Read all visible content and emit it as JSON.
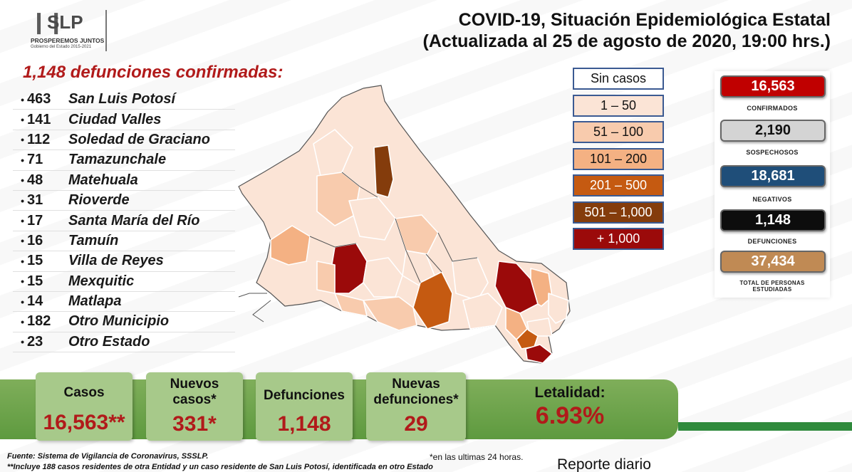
{
  "header": {
    "title_line1": "COVID-19, Situación Epidemiológica Estatal",
    "title_line2": "(Actualizada al 25 de agosto de 2020, 19:00 hrs.)"
  },
  "logo": {
    "text": "SLP",
    "tagline": "PROSPEREMOS JUNTOS",
    "subtitle": "Gobierno del Estado 2015-2021"
  },
  "deaths": {
    "heading": "1,148 defunciones confirmadas:",
    "rows": [
      {
        "bullet": "•",
        "count": "463",
        "name": "San Luis Potosí"
      },
      {
        "bullet": "•",
        "count": "141",
        "name": "Ciudad Valles"
      },
      {
        "bullet": "•",
        "count": "112",
        "name": "Soledad de Graciano"
      },
      {
        "bullet": "•",
        "count": "71",
        "name": "Tamazunchale"
      },
      {
        "bullet": "•",
        "count": "48",
        "name": "Matehuala"
      },
      {
        "bullet": "•",
        "count": "31",
        "name": "Rioverde"
      },
      {
        "bullet": "•",
        "count": "17",
        "name": "Santa María del Río"
      },
      {
        "bullet": "•",
        "count": "16",
        "name": "Tamuín"
      },
      {
        "bullet": "•",
        "count": "15",
        "name": "Villa de Reyes"
      },
      {
        "bullet": "•",
        "count": "15",
        "name": "Mexquitic"
      },
      {
        "bullet": "•",
        "count": "14",
        "name": "Matlapa"
      },
      {
        "bullet": "•",
        "count": "182",
        "name": "Otro Municipio"
      },
      {
        "bullet": "•",
        "count": "23",
        "name": "Otro Estado"
      }
    ]
  },
  "legend": [
    {
      "label": "Sin casos",
      "bg": "#ffffff",
      "fg": "#111111"
    },
    {
      "label": "1 – 50",
      "bg": "#fbe4d6",
      "fg": "#111111"
    },
    {
      "label": "51 – 100",
      "bg": "#f8cbad",
      "fg": "#111111"
    },
    {
      "label": "101 – 200",
      "bg": "#f4b183",
      "fg": "#111111"
    },
    {
      "label": "201 – 500",
      "bg": "#c55a11",
      "fg": "#ffffff"
    },
    {
      "label": "501 – 1,000",
      "bg": "#843c0c",
      "fg": "#ffffff"
    },
    {
      "label": "+ 1,000",
      "bg": "#9b0a0a",
      "fg": "#ffffff"
    }
  ],
  "stats": [
    {
      "value": "16,563",
      "label": "CONFIRMADOS",
      "bg": "#c00000",
      "fg": "#ffffff"
    },
    {
      "value": "2,190",
      "label": "SOSPECHOSOS",
      "bg": "#d4d4d4",
      "fg": "#111111"
    },
    {
      "value": "18,681",
      "label": "NEGATIVOS",
      "bg": "#1f4e79",
      "fg": "#ffffff"
    },
    {
      "value": "1,148",
      "label": "DEFUNCIONES",
      "bg": "#0d0d0d",
      "fg": "#ffffff"
    },
    {
      "value": "37,434",
      "label": "TOTAL DE PERSONAS ESTUDIADAS",
      "bg": "#c08a54",
      "fg": "#ffffff"
    }
  ],
  "summary": {
    "casos_label": "Casos",
    "casos_value": "16,563**",
    "nuevos_casos_label": "Nuevos casos*",
    "nuevos_casos_value": "331*",
    "defunciones_label": "Defunciones",
    "defunciones_value": "1,148",
    "nuevas_defunciones_label": "Nuevas defunciones*",
    "nuevas_defunciones_value": "29",
    "letalidad_label": "Letalidad:",
    "letalidad_value": "6.93%"
  },
  "footer": {
    "source": "Fuente: Sistema de Vigilancia de Coronavirus, SSSLP.",
    "note": "**Incluye 188 casos residentes de otra Entidad y un caso residente de San Luis Potosí, identificada en otro Estado",
    "asterisk_note": "*en las ultimas 24 horas.",
    "report": "Reporte diario"
  },
  "colors": {
    "accent_red": "#b11a1a",
    "band_green": "#6fa44c",
    "card_green": "#a7c98a",
    "legend_border": "#3b5a92"
  }
}
